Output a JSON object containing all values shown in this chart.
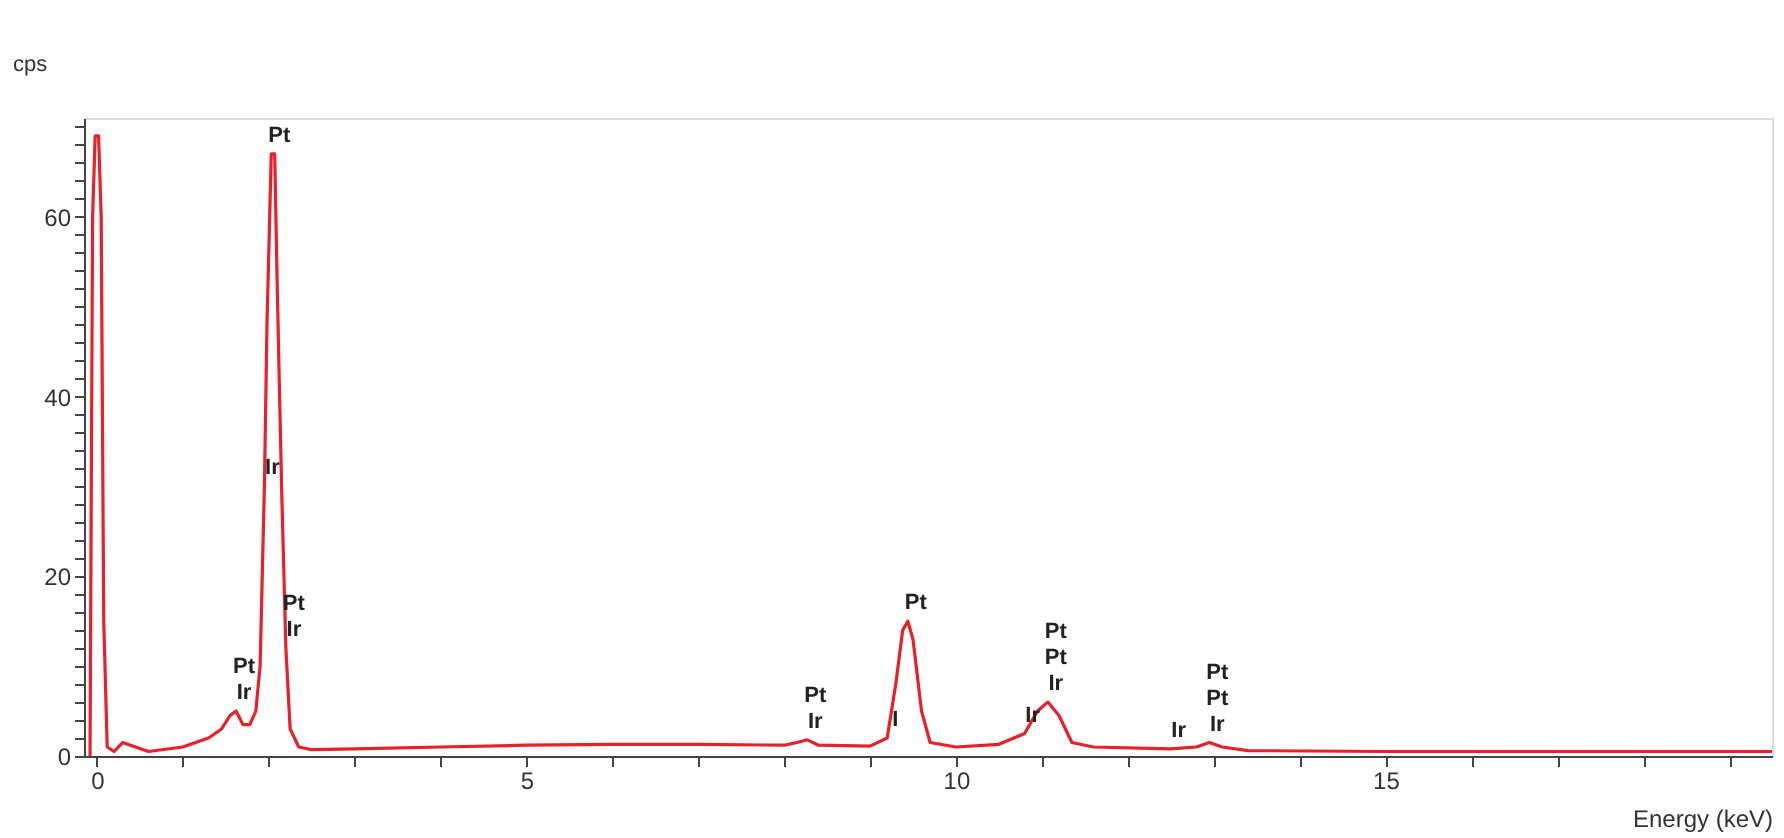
{
  "chart_data": {
    "type": "line",
    "xlabel": "Energy (keV)",
    "ylabel": "cps",
    "xlim": [
      -0.15,
      19.5
    ],
    "ylim": [
      0,
      71
    ],
    "xticks": [
      0,
      {
        "value": 1,
        "label": null
      },
      {
        "value": 2,
        "label": null
      },
      {
        "value": 3,
        "label": null
      },
      {
        "value": 4,
        "label": null
      },
      5,
      {
        "value": 6,
        "label": null
      },
      {
        "value": 7,
        "label": null
      },
      {
        "value": 8,
        "label": null
      },
      {
        "value": 9,
        "label": null
      },
      10,
      {
        "value": 11,
        "label": null
      },
      {
        "value": 12,
        "label": null
      },
      {
        "value": 13,
        "label": null
      },
      {
        "value": 14,
        "label": null
      },
      15,
      {
        "value": 16,
        "label": null
      },
      {
        "value": 17,
        "label": null
      },
      {
        "value": 18,
        "label": null
      },
      {
        "value": 19,
        "label": null
      }
    ],
    "yticks": [
      0,
      {
        "value": 2,
        "label": null
      },
      {
        "value": 4,
        "label": null
      },
      {
        "value": 6,
        "label": null
      },
      {
        "value": 8,
        "label": null
      },
      {
        "value": 10,
        "label": null
      },
      {
        "value": 12,
        "label": null
      },
      {
        "value": 14,
        "label": null
      },
      {
        "value": 16,
        "label": null
      },
      {
        "value": 18,
        "label": null
      },
      20,
      {
        "value": 22,
        "label": null
      },
      {
        "value": 24,
        "label": null
      },
      {
        "value": 26,
        "label": null
      },
      {
        "value": 28,
        "label": null
      },
      {
        "value": 30,
        "label": null
      },
      {
        "value": 32,
        "label": null
      },
      {
        "value": 34,
        "label": null
      },
      {
        "value": 36,
        "label": null
      },
      {
        "value": 38,
        "label": null
      },
      40,
      {
        "value": 42,
        "label": null
      },
      {
        "value": 44,
        "label": null
      },
      {
        "value": 46,
        "label": null
      },
      {
        "value": 48,
        "label": null
      },
      {
        "value": 50,
        "label": null
      },
      {
        "value": 52,
        "label": null
      },
      {
        "value": 54,
        "label": null
      },
      {
        "value": 56,
        "label": null
      },
      {
        "value": 58,
        "label": null
      },
      60,
      {
        "value": 62,
        "label": null
      },
      {
        "value": 64,
        "label": null
      },
      {
        "value": 66,
        "label": null
      },
      {
        "value": 68,
        "label": null
      },
      {
        "value": 70,
        "label": null
      }
    ],
    "grid": false,
    "marker": "none",
    "line_style": "solid",
    "series": [
      {
        "color": "#e8202a",
        "x": [
          -0.08,
          -0.05,
          -0.02,
          0.02,
          0.05,
          0.08,
          0.12,
          0.2,
          0.3,
          0.45,
          0.6,
          1.0,
          1.3,
          1.45,
          1.55,
          1.62,
          1.7,
          1.78,
          1.85,
          1.9,
          1.95,
          1.98,
          2.03,
          2.07,
          2.1,
          2.15,
          2.2,
          2.25,
          2.35,
          2.5,
          3,
          4,
          5,
          6,
          7,
          8,
          8.15,
          8.27,
          8.4,
          9,
          9.2,
          9.3,
          9.38,
          9.44,
          9.5,
          9.6,
          9.7,
          10,
          10.5,
          10.8,
          10.95,
          11.07,
          11.2,
          11.35,
          11.6,
          12.5,
          12.8,
          12.95,
          13.1,
          13.4,
          15,
          17,
          19.5
        ],
        "values": [
          0,
          60,
          69,
          69,
          60,
          15,
          1,
          0.5,
          1.5,
          1,
          0.5,
          1,
          2,
          3,
          4.5,
          5,
          3.5,
          3.5,
          5,
          10,
          30,
          48,
          67,
          67,
          52,
          30,
          12,
          3,
          1,
          0.7,
          0.8,
          1,
          1.2,
          1.3,
          1.3,
          1.2,
          1.5,
          1.8,
          1.2,
          1.1,
          2,
          8,
          14,
          15,
          13,
          5,
          1.5,
          1,
          1.3,
          2.5,
          5,
          6,
          4.5,
          1.5,
          1,
          0.8,
          1,
          1.5,
          1,
          0.6,
          0.5,
          0.5,
          0.5
        ]
      }
    ],
    "annotations": [
      {
        "text": "Pt",
        "x": 2.03,
        "y": 67
      },
      {
        "text": "Ir",
        "x": 1.95,
        "y": 30
      },
      {
        "text": "Ir",
        "x": 2.2,
        "y": 12
      },
      {
        "text": "Pt",
        "x": 2.2,
        "y": 12
      },
      {
        "text": "Ir",
        "x": 1.62,
        "y": 5
      },
      {
        "text": "Pt",
        "x": 1.62,
        "y": 5
      },
      {
        "text": "Ir",
        "x": 8.27,
        "y": 1.8
      },
      {
        "text": "Pt",
        "x": 8.27,
        "y": 1.8
      },
      {
        "text": "I",
        "x": 9.2,
        "y": 2
      },
      {
        "text": "Pt",
        "x": 9.44,
        "y": 15
      },
      {
        "text": "Ir",
        "x": 10.8,
        "y": 2.5
      },
      {
        "text": "Ir",
        "x": 11.07,
        "y": 6
      },
      {
        "text": "Pt",
        "x": 11.07,
        "y": 6
      },
      {
        "text": "Pt",
        "x": 11.07,
        "y": 6
      },
      {
        "text": "Ir",
        "x": 12.5,
        "y": 0.8
      },
      {
        "text": "Ir",
        "x": 12.95,
        "y": 1.5
      },
      {
        "text": "Pt",
        "x": 12.95,
        "y": 1.5
      },
      {
        "text": "Pt",
        "x": 12.95,
        "y": 1.5
      }
    ]
  }
}
